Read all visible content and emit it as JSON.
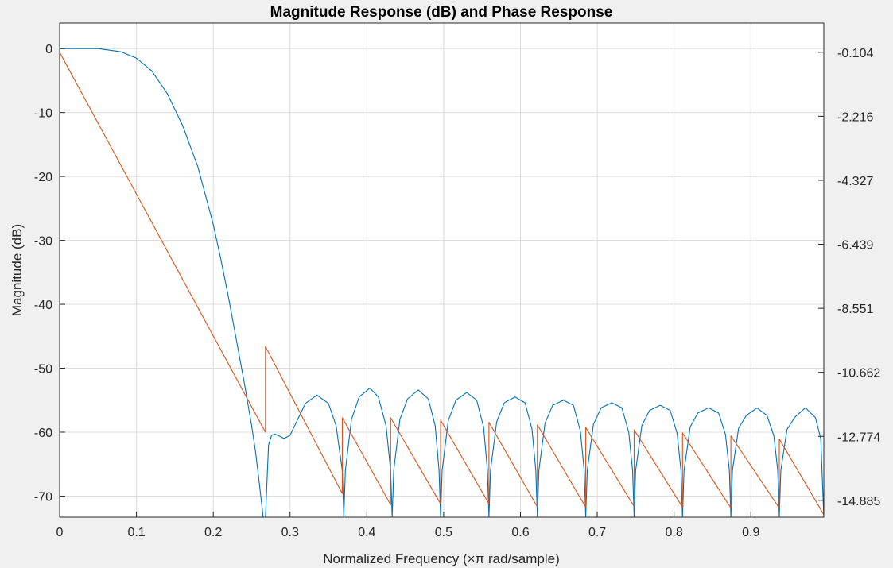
{
  "chart_data": {
    "type": "line",
    "title": "Magnitude Response (dB) and Phase Response",
    "xlabel": "Normalized Frequency (×π rad/sample)",
    "ylabel": "Magnitude (dB)",
    "ylabel_right": "",
    "xlim": [
      0,
      0.995
    ],
    "ylim": [
      -73.3,
      4
    ],
    "ylim_right": [
      -15.44,
      0.86
    ],
    "grid": true,
    "x_ticks": [
      "0",
      "0.1",
      "0.2",
      "0.3",
      "0.4",
      "0.5",
      "0.6",
      "0.7",
      "0.8",
      "0.9"
    ],
    "x_tick_values": [
      0,
      0.1,
      0.2,
      0.3,
      0.4,
      0.5,
      0.6,
      0.7,
      0.8,
      0.9
    ],
    "y_ticks": [
      "0",
      "-10",
      "-20",
      "-30",
      "-40",
      "-50",
      "-60",
      "-70"
    ],
    "y_tick_values": [
      0,
      -10,
      -20,
      -30,
      -40,
      -50,
      -60,
      -70
    ],
    "y_ticks_right": [
      "-0.104",
      "-2.216",
      "-4.327",
      "-6.439",
      "-8.551",
      "-10.662",
      "-12.774",
      "-14.885"
    ],
    "y_tick_values_right": [
      -0.104,
      -2.216,
      -4.327,
      -6.439,
      -8.551,
      -10.662,
      -12.774,
      -14.885
    ],
    "series": [
      {
        "axis": "left",
        "color": "#0072bd",
        "x": [
          0,
          0.05,
          0.08,
          0.1,
          0.12,
          0.14,
          0.16,
          0.18,
          0.2,
          0.21,
          0.22,
          0.23,
          0.24,
          0.25,
          0.255,
          0.26,
          0.265,
          0.268,
          0.272,
          0.276,
          0.28,
          0.286,
          0.292,
          0.3,
          0.31,
          0.32,
          0.335,
          0.35,
          0.36,
          0.368,
          0.37,
          0.372,
          0.38,
          0.39,
          0.404,
          0.415,
          0.425,
          0.431,
          0.433,
          0.435,
          0.443,
          0.453,
          0.467,
          0.48,
          0.489,
          0.494,
          0.496,
          0.498,
          0.506,
          0.516,
          0.53,
          0.543,
          0.552,
          0.557,
          0.559,
          0.561,
          0.569,
          0.579,
          0.593,
          0.606,
          0.615,
          0.62,
          0.622,
          0.624,
          0.632,
          0.642,
          0.656,
          0.669,
          0.678,
          0.683,
          0.685,
          0.687,
          0.695,
          0.705,
          0.719,
          0.732,
          0.741,
          0.746,
          0.748,
          0.75,
          0.758,
          0.768,
          0.782,
          0.795,
          0.804,
          0.809,
          0.811,
          0.813,
          0.821,
          0.831,
          0.845,
          0.858,
          0.867,
          0.872,
          0.874,
          0.876,
          0.884,
          0.894,
          0.908,
          0.921,
          0.93,
          0.935,
          0.937,
          0.939,
          0.947,
          0.957,
          0.971,
          0.984,
          0.991,
          0.995
        ],
        "y": [
          0,
          0,
          -0.5,
          -1.5,
          -3.5,
          -7,
          -12,
          -18.5,
          -27.5,
          -33,
          -39,
          -45.5,
          -52,
          -59,
          -63,
          -68,
          -73.3,
          -73.3,
          -62,
          -60.5,
          -60.3,
          -60.6,
          -61,
          -60.5,
          -58,
          -55.5,
          -54.2,
          -55.5,
          -59,
          -66,
          -73.3,
          -66,
          -58,
          -54.5,
          -53.1,
          -54.5,
          -59,
          -66,
          -73.3,
          -66,
          -58,
          -54.8,
          -53.4,
          -54.8,
          -59,
          -66,
          -73.3,
          -66,
          -58.2,
          -55,
          -53.8,
          -55,
          -59.2,
          -66,
          -73.3,
          -66,
          -58.4,
          -55.4,
          -54.5,
          -55.4,
          -59.5,
          -66,
          -73.3,
          -66,
          -58.6,
          -55.8,
          -55,
          -55.8,
          -59.8,
          -66,
          -73.3,
          -66,
          -58.8,
          -56.2,
          -55.4,
          -56.2,
          -60,
          -66,
          -73.3,
          -66,
          -59,
          -56.6,
          -55.8,
          -56.6,
          -60.2,
          -66,
          -73.3,
          -66,
          -59.2,
          -57,
          -56.2,
          -57,
          -60.4,
          -66,
          -73.3,
          -66,
          -59.4,
          -57.4,
          -56.2,
          -57.4,
          -60.6,
          -66,
          -73.3,
          -66,
          -59.6,
          -57.7,
          -56.2,
          -57.7,
          -61,
          -73.3
        ]
      },
      {
        "axis": "right",
        "color": "#d95319",
        "x": [
          0,
          0.268,
          0.268,
          0.368,
          0.368,
          0.431,
          0.431,
          0.496,
          0.496,
          0.559,
          0.559,
          0.622,
          0.622,
          0.685,
          0.685,
          0.748,
          0.748,
          0.811,
          0.811,
          0.874,
          0.874,
          0.937,
          0.937,
          0.995
        ],
        "y": [
          -0.104,
          -12.64,
          -9.81,
          -14.66,
          -12.16,
          -15.03,
          -12.16,
          -15.0,
          -12.24,
          -15.0,
          -12.31,
          -15.1,
          -12.39,
          -15.11,
          -12.48,
          -15.09,
          -12.56,
          -15.11,
          -12.66,
          -15.14,
          -12.76,
          -15.14,
          -12.86,
          -15.36
        ]
      }
    ]
  }
}
